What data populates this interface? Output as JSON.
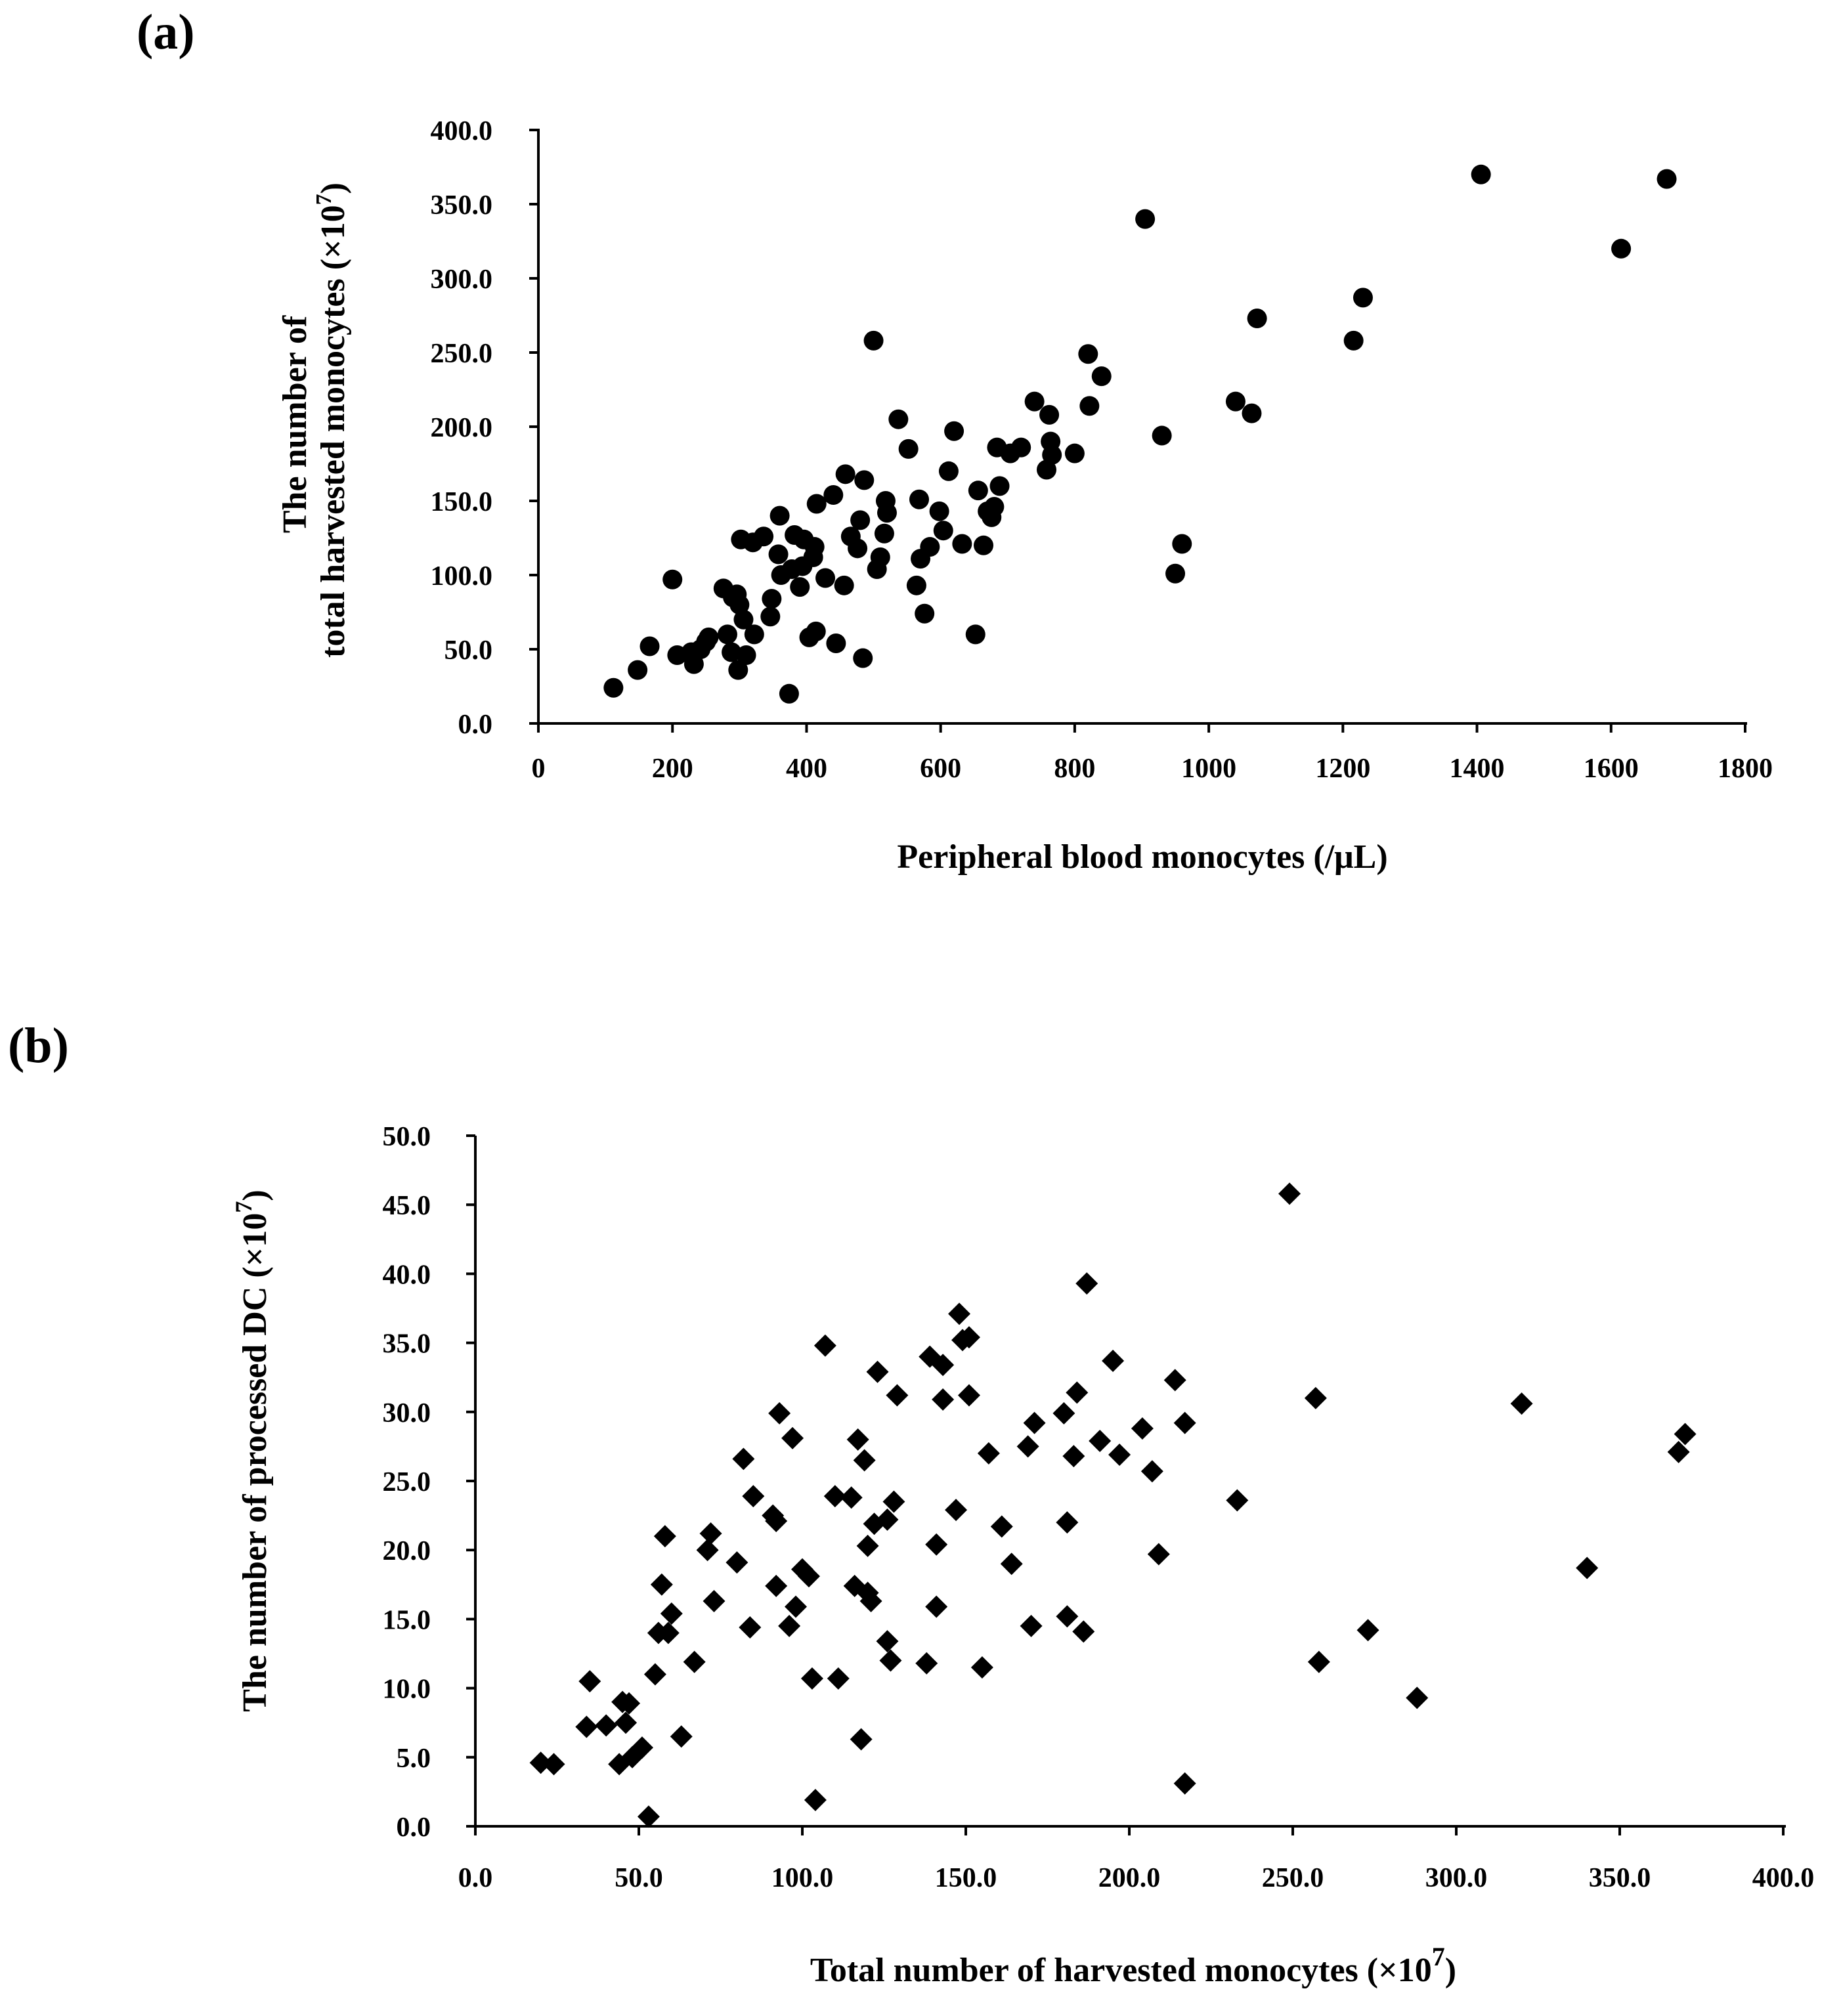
{
  "panels": [
    {
      "id": "a",
      "label": "(a)"
    },
    {
      "id": "b",
      "label": "(b)"
    }
  ],
  "chart_data": [
    {
      "type": "scatter",
      "panel": "(a)",
      "marker": "circle",
      "xlabel": "Peripheral blood monocytes (/μL)",
      "ylabel_line1": "The number of",
      "ylabel_line2": "total harvested monocytes (×10",
      "ylabel_sup": "7",
      "ylabel_close": ")",
      "xlim": [
        0,
        1800
      ],
      "ylim": [
        0,
        400
      ],
      "xticks": [
        "0",
        "200",
        "400",
        "600",
        "800",
        "1000",
        "1200",
        "1400",
        "1600",
        "1800"
      ],
      "yticks": [
        "0.0",
        "50.0",
        "100.0",
        "150.0",
        "200.0",
        "250.0",
        "300.0",
        "350.0",
        "400.0"
      ],
      "points": [
        [
          112,
          24
        ],
        [
          148,
          36
        ],
        [
          166,
          52
        ],
        [
          200,
          97
        ],
        [
          207,
          46
        ],
        [
          228,
          48
        ],
        [
          232,
          40
        ],
        [
          242,
          50
        ],
        [
          250,
          55
        ],
        [
          254,
          58
        ],
        [
          276,
          91
        ],
        [
          282,
          60
        ],
        [
          288,
          48
        ],
        [
          290,
          85
        ],
        [
          296,
          87
        ],
        [
          298,
          36
        ],
        [
          300,
          80
        ],
        [
          302,
          124
        ],
        [
          306,
          70
        ],
        [
          310,
          46
        ],
        [
          320,
          122
        ],
        [
          322,
          60
        ],
        [
          336,
          126
        ],
        [
          346,
          72
        ],
        [
          348,
          84
        ],
        [
          358,
          114
        ],
        [
          360,
          140
        ],
        [
          362,
          100
        ],
        [
          374,
          20
        ],
        [
          378,
          104
        ],
        [
          382,
          127
        ],
        [
          390,
          92
        ],
        [
          394,
          106
        ],
        [
          396,
          124
        ],
        [
          404,
          58
        ],
        [
          410,
          112
        ],
        [
          412,
          119
        ],
        [
          414,
          62
        ],
        [
          415,
          148
        ],
        [
          428,
          98
        ],
        [
          440,
          154
        ],
        [
          444,
          54
        ],
        [
          456,
          93
        ],
        [
          458,
          168
        ],
        [
          466,
          126
        ],
        [
          476,
          118
        ],
        [
          480,
          137
        ],
        [
          484,
          44
        ],
        [
          486,
          164
        ],
        [
          500,
          258
        ],
        [
          505,
          104
        ],
        [
          510,
          112
        ],
        [
          516,
          128
        ],
        [
          518,
          150
        ],
        [
          520,
          142
        ],
        [
          537,
          205
        ],
        [
          552,
          185
        ],
        [
          564,
          93
        ],
        [
          568,
          151
        ],
        [
          570,
          111
        ],
        [
          576,
          74
        ],
        [
          584,
          119
        ],
        [
          598,
          143
        ],
        [
          604,
          130
        ],
        [
          612,
          170
        ],
        [
          620,
          197
        ],
        [
          632,
          121
        ],
        [
          652,
          60
        ],
        [
          656,
          157
        ],
        [
          664,
          120
        ],
        [
          670,
          143
        ],
        [
          676,
          139
        ],
        [
          680,
          146
        ],
        [
          684,
          186
        ],
        [
          688,
          160
        ],
        [
          704,
          182
        ],
        [
          720,
          186
        ],
        [
          740,
          217
        ],
        [
          758,
          171
        ],
        [
          762,
          208
        ],
        [
          764,
          190
        ],
        [
          766,
          181
        ],
        [
          800,
          182
        ],
        [
          820,
          249
        ],
        [
          822,
          214
        ],
        [
          840,
          234
        ],
        [
          905,
          340
        ],
        [
          930,
          194
        ],
        [
          950,
          101
        ],
        [
          960,
          121
        ],
        [
          1040,
          217
        ],
        [
          1064,
          209
        ],
        [
          1072,
          273
        ],
        [
          1216,
          258
        ],
        [
          1230,
          287
        ],
        [
          1406,
          370
        ],
        [
          1615,
          320
        ],
        [
          1683,
          367
        ]
      ]
    },
    {
      "type": "scatter",
      "panel": "(b)",
      "marker": "diamond",
      "xlabel": "Total number of harvested monocytes (",
      "xlabel_sym": "×10",
      "xlabel_sup": "7",
      "xlabel_close": ")",
      "ylabel": "The number of processed DC (",
      "ylabel_sym": "×10",
      "ylabel_sup": "7",
      "ylabel_close": ")",
      "xlim": [
        0,
        400
      ],
      "ylim": [
        0,
        50
      ],
      "xticks": [
        "0.0",
        "50.0",
        "100.0",
        "150.0",
        "200.0",
        "250.0",
        "300.0",
        "350.0",
        "400.0"
      ],
      "yticks": [
        "0.0",
        "5.0",
        "10.0",
        "15.0",
        "20.0",
        "25.0",
        "30.0",
        "35.0",
        "40.0",
        "45.0",
        "50.0"
      ],
      "points": [
        [
          20,
          4.6
        ],
        [
          24,
          4.5
        ],
        [
          34,
          7.2
        ],
        [
          35,
          10.5
        ],
        [
          40,
          7.3
        ],
        [
          44,
          4.5
        ],
        [
          45,
          9.0
        ],
        [
          46,
          7.5
        ],
        [
          47,
          8.9
        ],
        [
          48,
          5.0
        ],
        [
          51,
          5.7
        ],
        [
          53,
          0.7
        ],
        [
          55,
          11.0
        ],
        [
          56,
          14.0
        ],
        [
          57,
          17.5
        ],
        [
          58,
          21.0
        ],
        [
          59,
          14.0
        ],
        [
          60,
          15.4
        ],
        [
          63,
          6.5
        ],
        [
          67,
          11.9
        ],
        [
          71,
          20.0
        ],
        [
          72,
          21.2
        ],
        [
          73,
          16.3
        ],
        [
          80,
          19.1
        ],
        [
          82,
          26.6
        ],
        [
          84,
          14.4
        ],
        [
          85,
          23.9
        ],
        [
          91,
          22.5
        ],
        [
          92,
          22.1
        ],
        [
          92,
          17.4
        ],
        [
          93,
          29.9
        ],
        [
          96,
          14.5
        ],
        [
          97,
          28.1
        ],
        [
          98,
          15.9
        ],
        [
          100,
          18.6
        ],
        [
          102,
          18.1
        ],
        [
          103,
          10.7
        ],
        [
          104,
          1.9
        ],
        [
          107,
          34.8
        ],
        [
          110,
          23.9
        ],
        [
          111,
          10.7
        ],
        [
          115,
          23.8
        ],
        [
          116,
          17.4
        ],
        [
          117,
          28.0
        ],
        [
          118,
          6.3
        ],
        [
          119,
          26.5
        ],
        [
          120,
          16.9
        ],
        [
          120,
          20.3
        ],
        [
          121,
          16.3
        ],
        [
          122,
          21.9
        ],
        [
          123,
          32.9
        ],
        [
          126,
          22.2
        ],
        [
          126,
          13.4
        ],
        [
          127,
          12.0
        ],
        [
          128,
          23.5
        ],
        [
          129,
          31.2
        ],
        [
          138,
          11.8
        ],
        [
          139,
          34.0
        ],
        [
          141,
          20.4
        ],
        [
          141,
          15.9
        ],
        [
          143,
          33.4
        ],
        [
          143,
          30.9
        ],
        [
          147,
          22.9
        ],
        [
          148,
          37.1
        ],
        [
          149,
          35.2
        ],
        [
          151,
          31.2
        ],
        [
          151,
          35.4
        ],
        [
          155,
          11.5
        ],
        [
          157,
          27.0
        ],
        [
          161,
          21.7
        ],
        [
          164,
          19.0
        ],
        [
          169,
          27.5
        ],
        [
          170,
          14.5
        ],
        [
          171,
          29.2
        ],
        [
          180,
          29.9
        ],
        [
          181,
          15.2
        ],
        [
          181,
          22.0
        ],
        [
          183,
          26.8
        ],
        [
          184,
          31.4
        ],
        [
          186,
          14.1
        ],
        [
          187,
          39.3
        ],
        [
          191,
          27.9
        ],
        [
          195,
          33.7
        ],
        [
          197,
          26.9
        ],
        [
          204,
          28.8
        ],
        [
          207,
          25.7
        ],
        [
          209,
          19.7
        ],
        [
          214,
          32.3
        ],
        [
          217,
          3.1
        ],
        [
          217,
          29.2
        ],
        [
          233,
          23.6
        ],
        [
          249,
          45.8
        ],
        [
          257,
          31.0
        ],
        [
          258,
          11.9
        ],
        [
          273,
          14.2
        ],
        [
          288,
          9.3
        ],
        [
          320,
          30.6
        ],
        [
          340,
          18.7
        ],
        [
          368,
          27.1
        ],
        [
          370,
          28.4
        ]
      ]
    }
  ]
}
